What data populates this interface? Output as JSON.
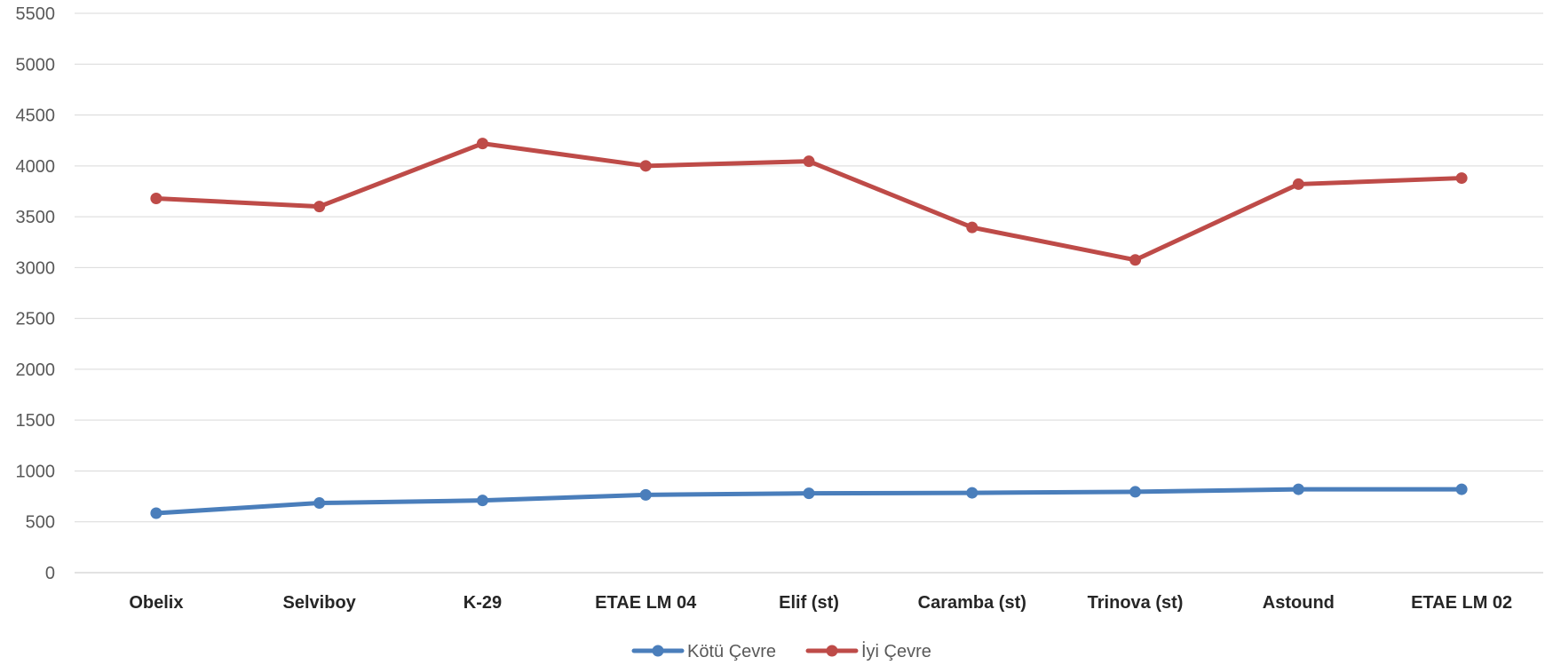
{
  "chart_data": {
    "type": "line",
    "title": "",
    "xlabel": "",
    "ylabel": "",
    "ylim": [
      0,
      5500
    ],
    "y_ticks": [
      0,
      500,
      1000,
      1500,
      2000,
      2500,
      3000,
      3500,
      4000,
      4500,
      5000,
      5500
    ],
    "grid": true,
    "legend_position": "bottom",
    "categories": [
      "Obelix",
      "Selviboy",
      "K-29",
      "ETAE LM 04",
      "Elif (st)",
      "Caramba (st)",
      "Trinova (st)",
      "Astound",
      "ETAE LM 02"
    ],
    "series": [
      {
        "name": "Kötü Çevre",
        "color": "#4a7ebb",
        "values": [
          585,
          685,
          710,
          765,
          780,
          785,
          795,
          820,
          820
        ]
      },
      {
        "name": "İyi Çevre",
        "color": "#be4b48",
        "values": [
          3680,
          3600,
          4220,
          4000,
          4045,
          3395,
          3075,
          3820,
          3880
        ]
      }
    ]
  }
}
